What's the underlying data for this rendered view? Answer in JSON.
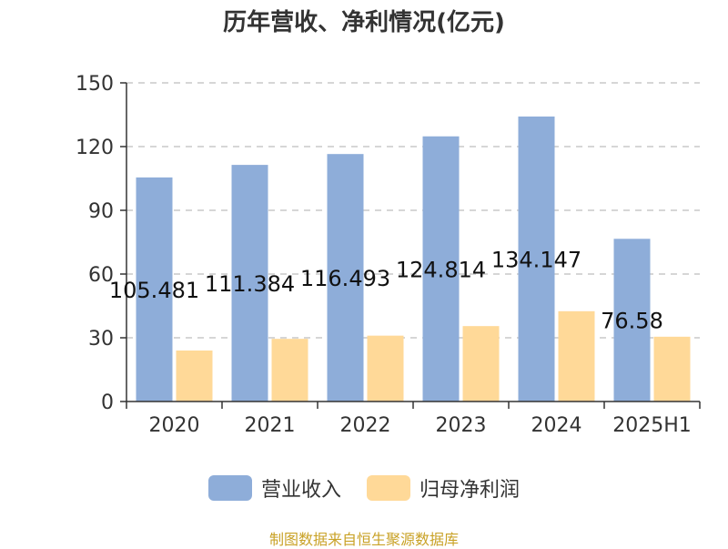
{
  "chart_data": {
    "type": "bar",
    "title": "历年营收、净利情况(亿元)",
    "categories": [
      "2020",
      "2021",
      "2022",
      "2023",
      "2024",
      "2025H1"
    ],
    "series": [
      {
        "name": "营业收入",
        "color": "#8eadd9",
        "values": [
          105.481,
          111.384,
          116.493,
          124.814,
          134.147,
          76.58
        ],
        "labels": [
          "105.481",
          "111.384",
          "116.493",
          "124.814",
          "134.147",
          "76.58"
        ]
      },
      {
        "name": "归母净利润",
        "color": "#ffd998",
        "values": [
          24,
          29.5,
          31,
          35.5,
          42.5,
          30.5
        ]
      }
    ],
    "yticks": [
      "0",
      "30",
      "60",
      "90",
      "120",
      "150"
    ],
    "ylim": [
      0,
      150
    ],
    "grid": true,
    "legend": "bottom"
  },
  "source": "制图数据来自恒生聚源数据库"
}
